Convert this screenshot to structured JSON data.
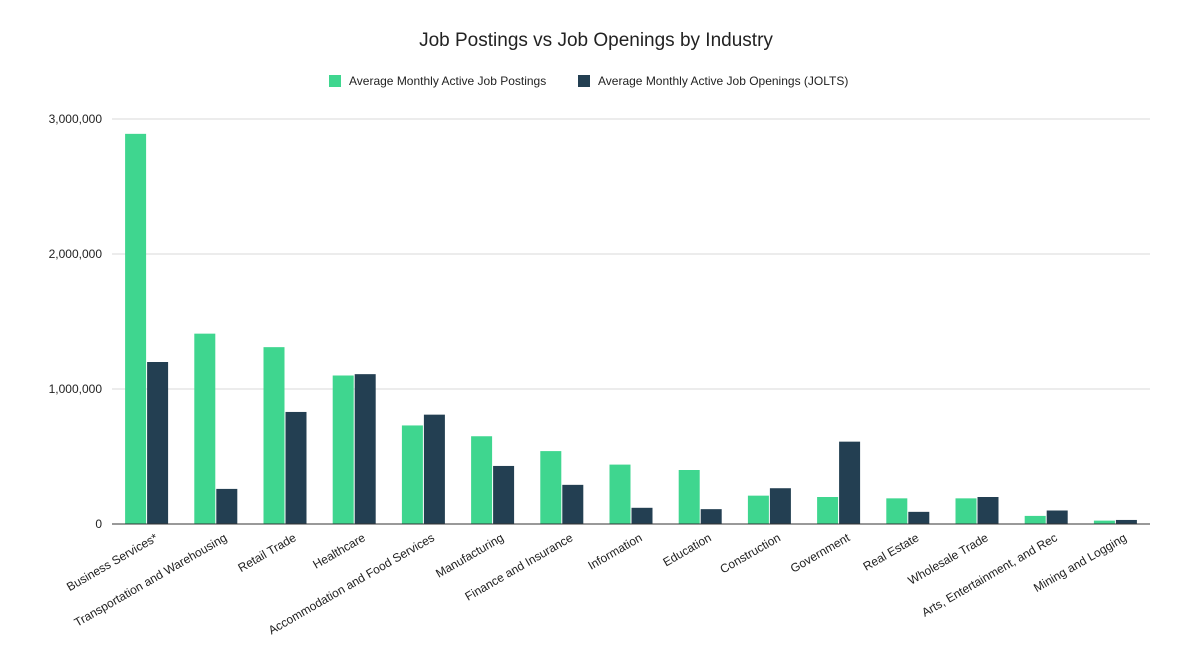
{
  "chart_data": {
    "type": "bar",
    "title": "Job Postings vs Job Openings by Industry",
    "xlabel": "",
    "ylabel": "",
    "ylim": [
      0,
      3000000
    ],
    "y_ticks": [
      0,
      1000000,
      2000000,
      3000000
    ],
    "y_tick_labels": [
      "0",
      "1,000,000",
      "2,000,000",
      "3,000,000"
    ],
    "grid": true,
    "legend_position": "top",
    "categories": [
      "Business Services*",
      "Transportation and Warehousing",
      "Retail Trade",
      "Healthcare",
      "Accommodation and Food Services",
      "Manufacturing",
      "Finance and Insurance",
      "Information",
      "Education",
      "Construction",
      "Government",
      "Real Estate",
      "Wholesale Trade",
      "Arts, Entertainment, and Rec",
      "Mining and Logging"
    ],
    "series": [
      {
        "name": "Average Monthly Active Job Postings",
        "color": "#3fd68f",
        "values": [
          2890000,
          1410000,
          1310000,
          1100000,
          730000,
          650000,
          540000,
          440000,
          400000,
          210000,
          200000,
          190000,
          190000,
          60000,
          25000
        ]
      },
      {
        "name": "Average Monthly Active Job Openings (JOLTS)",
        "color": "#233f52",
        "values": [
          1200000,
          260000,
          830000,
          1110000,
          810000,
          430000,
          290000,
          120000,
          110000,
          265000,
          610000,
          90000,
          200000,
          100000,
          30000
        ]
      }
    ]
  }
}
